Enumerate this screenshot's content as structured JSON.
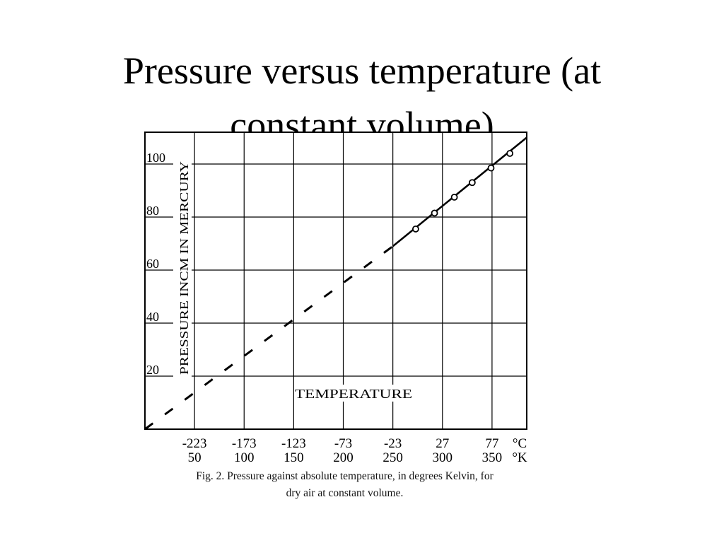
{
  "slide": {
    "title_line_1": "Pressure versus temperature (at",
    "title_line_2": "constant volume)"
  },
  "chart_data": {
    "type": "line",
    "title": "Pressure versus temperature (at constant volume)",
    "xlabel": "TEMPERATURE",
    "ylabel": "PRESSURE INCM IN MERCURY",
    "x_unit": "°K",
    "x_alt_unit": "°C",
    "xlim": [
      0,
      385
    ],
    "ylim": [
      0,
      112
    ],
    "x_ticks_kelvin": [
      50,
      100,
      150,
      200,
      250,
      300,
      350
    ],
    "x_ticks_celsius": [
      -223,
      -173,
      -123,
      -73,
      -23,
      27,
      77
    ],
    "x_tick_labels_celsius": [
      "-223",
      "-173",
      "-123",
      "-73",
      "-23",
      "27",
      "77",
      "°C"
    ],
    "x_tick_labels_kelvin": [
      "50",
      "100",
      "150",
      "200",
      "250",
      "300",
      "350",
      "°K"
    ],
    "y_ticks": [
      20,
      40,
      60,
      80,
      100
    ],
    "y_tick_labels": [
      "20",
      "40",
      "60",
      "80",
      "100"
    ],
    "grid": true,
    "series": [
      {
        "style": "measured",
        "x": [
          273,
          292,
          312,
          330,
          349,
          368
        ],
        "y": [
          75.5,
          81.5,
          87.5,
          93,
          98.5,
          104
        ]
      },
      {
        "style": "solid",
        "x": [
          250,
          385
        ],
        "y": [
          69,
          110
        ]
      },
      {
        "style": "dashed-extrapolation",
        "x": [
          0,
          250
        ],
        "y": [
          0,
          69
        ]
      }
    ],
    "caption_line_1": "Fig. 2. Pressure against absolute temperature, in degrees Kelvin, for",
    "caption_line_2": "dry air at constant volume."
  }
}
